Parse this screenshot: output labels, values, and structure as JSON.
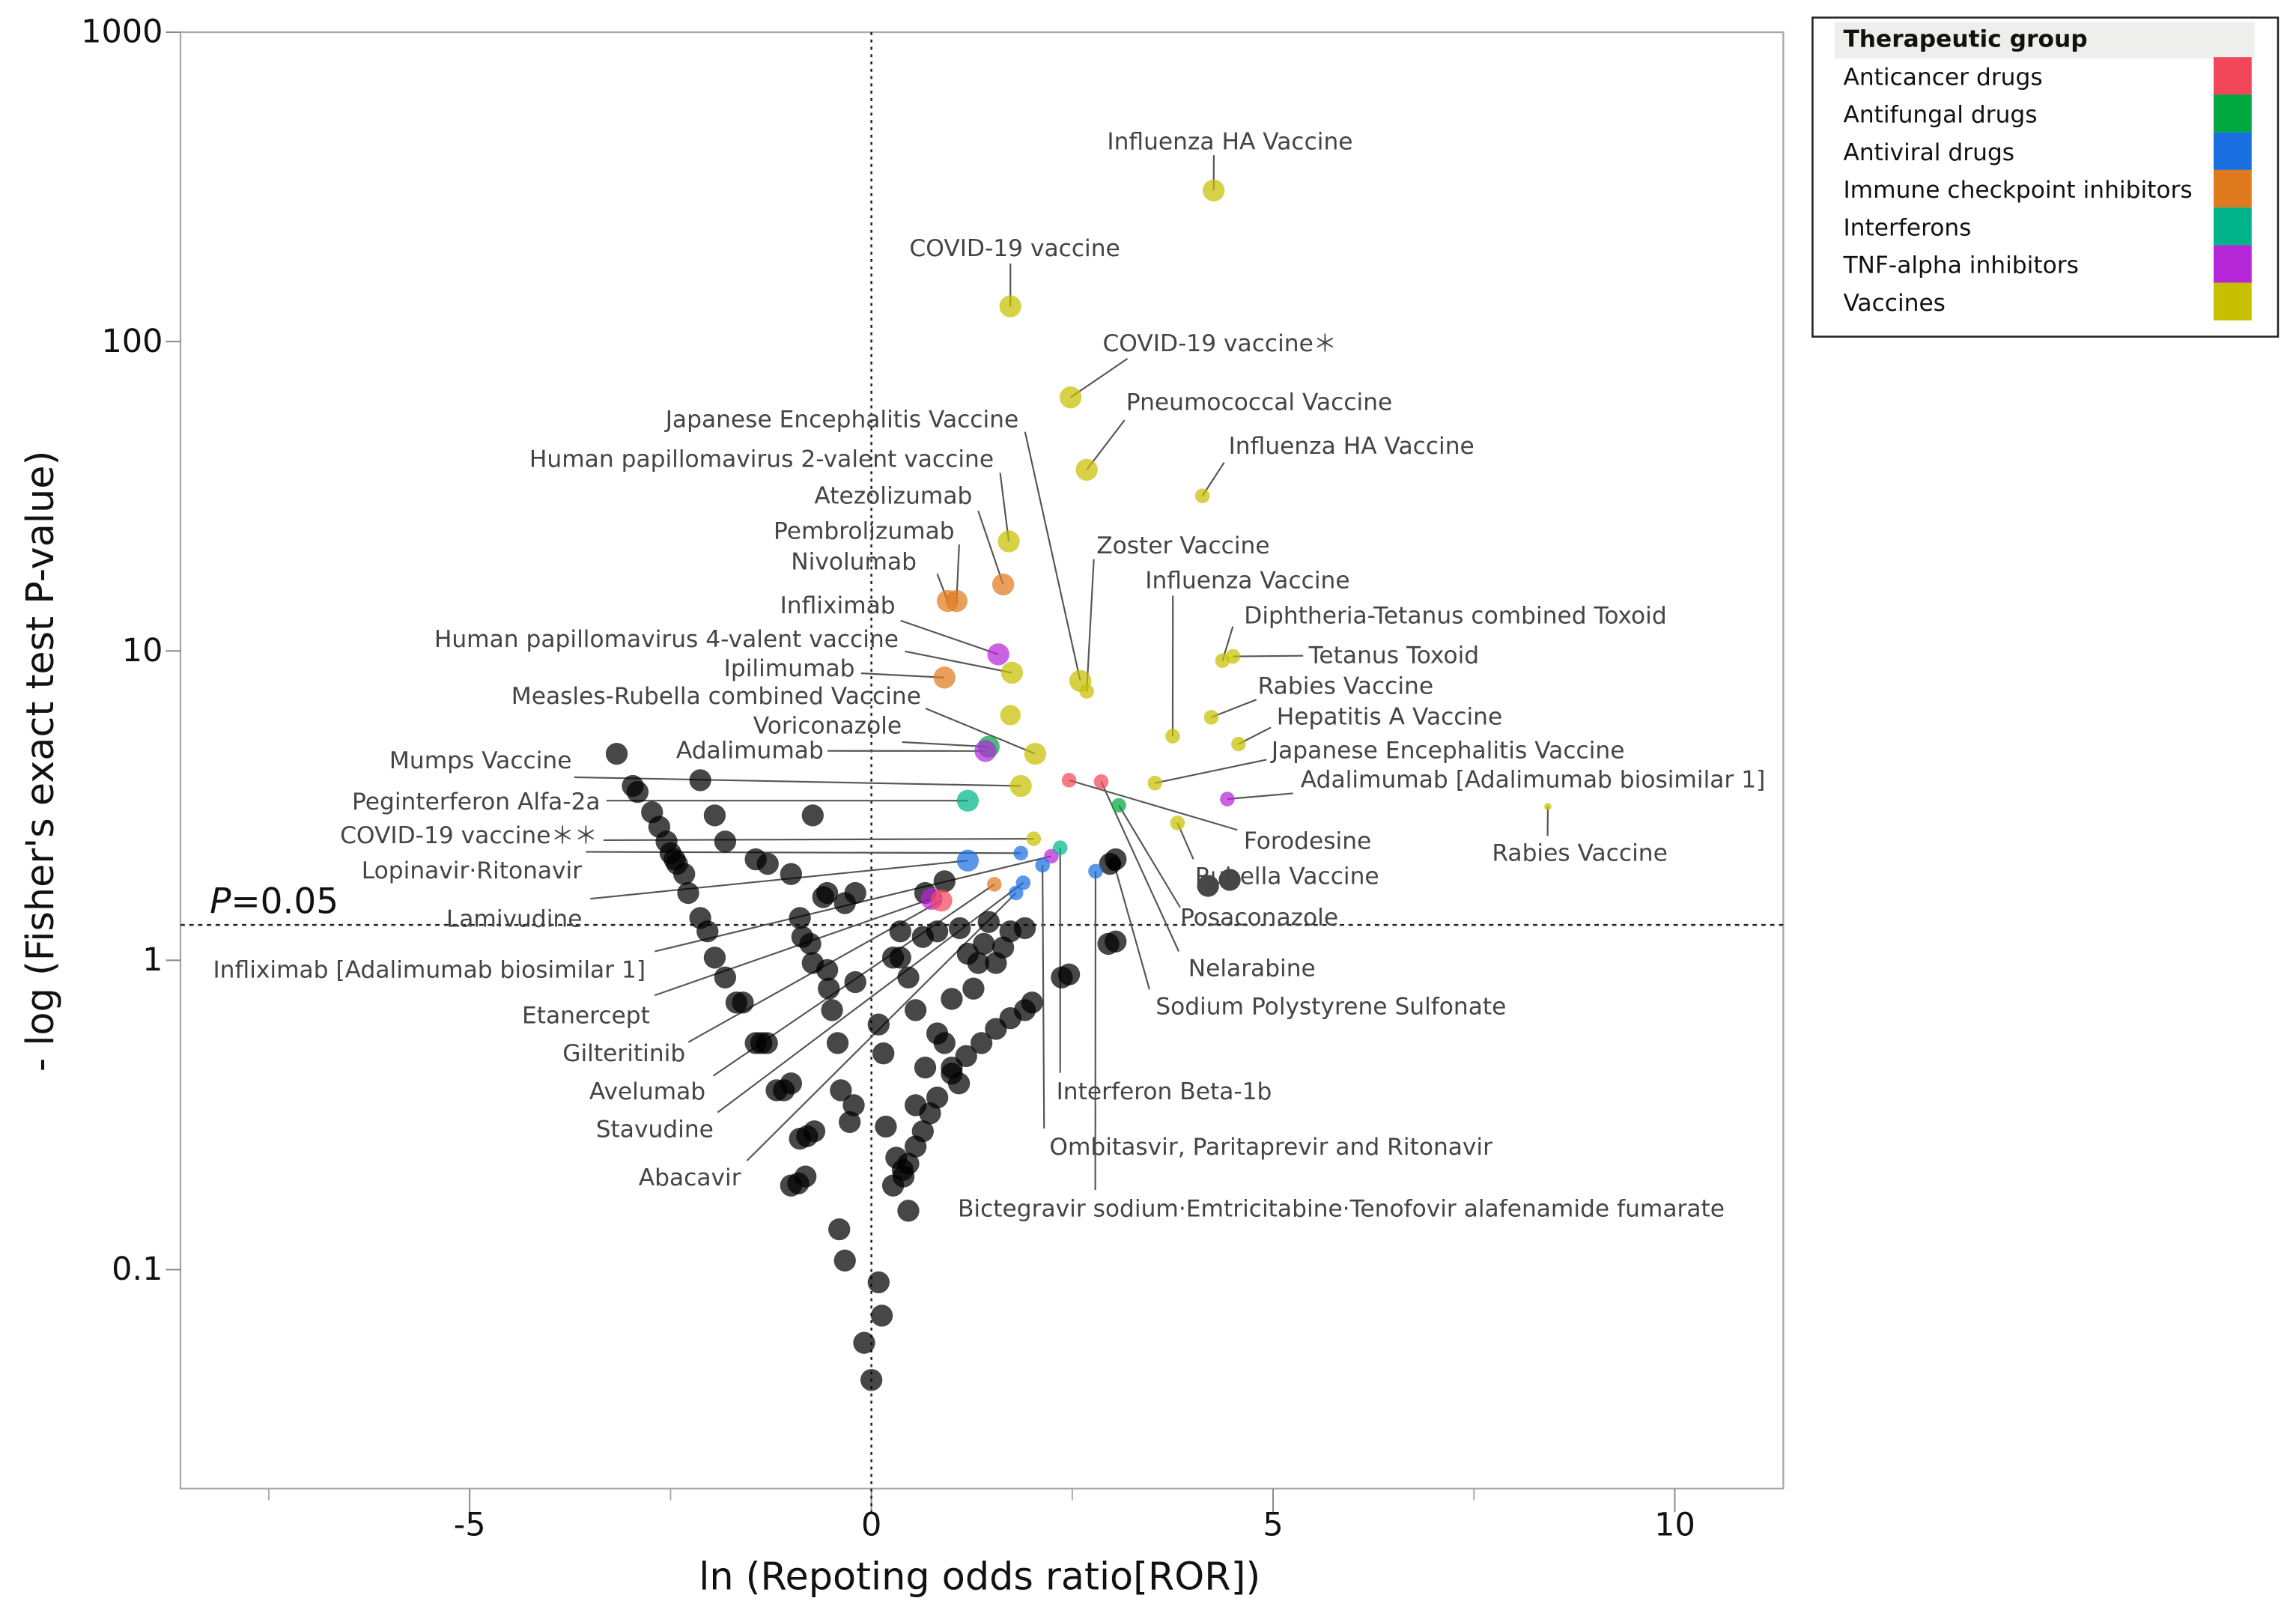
{
  "chart_data": {
    "type": "scatter",
    "title": "",
    "xlabel": "ln (Repoting odds ratio[ROR])",
    "ylabel": "- log (Fisher's exact test P-value)",
    "xlim": [
      -8.6,
      11.35
    ],
    "ylim": [
      0.0196,
      1000
    ],
    "yscale": "log",
    "x_ticks": [
      -5,
      0,
      5,
      10
    ],
    "x_tick_labels": [
      "-5",
      "0",
      "5",
      "10"
    ],
    "x_minor_ticks": [
      -7.5,
      -2.5,
      2.5,
      7.5
    ],
    "y_ticks": [
      1000,
      100,
      10,
      1,
      0.1
    ],
    "y_tick_labels": [
      "1000",
      "100",
      "10",
      "1",
      "0.1"
    ],
    "threshold": {
      "y": 1.301,
      "label_italic": "P",
      "label_rest": "=0.05"
    },
    "reference_x": 0,
    "legend": {
      "title": "Therapeutic group",
      "placement": "top-right",
      "groups": [
        {
          "name": "Anticancer drugs",
          "color": "#f2475a"
        },
        {
          "name": "Antifungal drugs",
          "color": "#00a840"
        },
        {
          "name": "Antiviral drugs",
          "color": "#1a6fe0"
        },
        {
          "name": "Immune checkpoint inhibitors",
          "color": "#e07a1e"
        },
        {
          "name": "Interferons",
          "color": "#00b48a"
        },
        {
          "name": "TNF-alpha inhibitors",
          "color": "#b526d9"
        },
        {
          "name": "Vaccines",
          "color": "#c8bf00"
        }
      ]
    },
    "points": [
      {
        "label": "Influenza HA Vaccine",
        "group": "Vaccines",
        "x": 4.26,
        "y": 308
      },
      {
        "label": "COVID-19 vaccine",
        "group": "Vaccines",
        "x": 1.73,
        "y": 130
      },
      {
        "label": "COVID-19 vaccine＊",
        "group": "Vaccines",
        "x": 2.48,
        "y": 66
      },
      {
        "label": "Pneumococcal Vaccine",
        "group": "Vaccines",
        "x": 2.68,
        "y": 38.5
      },
      {
        "label": "Influenza HA Vaccine",
        "group": "Vaccines",
        "x": 4.12,
        "y": 31.7,
        "small": true
      },
      {
        "label": "Japanese Encephalitis Vaccine",
        "group": "Vaccines",
        "x": 2.6,
        "y": 8.0
      },
      {
        "label": "Human papillomavirus 2-valent vaccine",
        "group": "Vaccines",
        "x": 1.71,
        "y": 22.6
      },
      {
        "label": "Atezolizumab",
        "group": "Immune checkpoint inhibitors",
        "x": 1.64,
        "y": 16.4
      },
      {
        "label": "Pembrolizumab",
        "group": "Immune checkpoint inhibitors",
        "x": 1.06,
        "y": 14.5
      },
      {
        "label": "Nivolumab",
        "group": "Immune checkpoint inhibitors",
        "x": 0.95,
        "y": 14.5
      },
      {
        "label": "Infliximab",
        "group": "TNF-alpha inhibitors",
        "x": 1.58,
        "y": 9.75
      },
      {
        "label": "Human papillomavirus 4-valent vaccine",
        "group": "Vaccines",
        "x": 1.75,
        "y": 8.5
      },
      {
        "label": "Ipilimumab",
        "group": "Immune checkpoint inhibitors",
        "x": 0.91,
        "y": 8.2
      },
      {
        "label": "Measles-Rubella combined Vaccine",
        "group": "Vaccines",
        "x": 2.04,
        "y": 4.65
      },
      {
        "label": "Voriconazole",
        "group": "Antifungal drugs",
        "x": 1.46,
        "y": 4.9
      },
      {
        "label": "Adalimumab",
        "group": "TNF-alpha inhibitors",
        "x": 1.42,
        "y": 4.75
      },
      {
        "label": "Mumps Vaccine",
        "group": "Vaccines",
        "x": 1.86,
        "y": 3.66
      },
      {
        "label": "Peginterferon Alfa-2a",
        "group": "Interferons",
        "x": 1.2,
        "y": 3.28
      },
      {
        "label": "COVID-19 vaccine＊＊",
        "group": "Vaccines",
        "x": 2.02,
        "y": 2.47,
        "small": true
      },
      {
        "label": "Lopinavir·Ritonavir",
        "group": "Antiviral drugs",
        "x": 1.86,
        "y": 2.22,
        "small": true
      },
      {
        "label": "Lamivudine",
        "group": "Antiviral drugs",
        "x": 1.2,
        "y": 2.1
      },
      {
        "label": "Infliximab [Adalimumab biosimilar 1]",
        "group": "TNF-alpha inhibitors",
        "x": 2.24,
        "y": 2.17,
        "small": true
      },
      {
        "label": "Etanercept",
        "group": "TNF-alpha inhibitors",
        "x": 0.75,
        "y": 1.58
      },
      {
        "label": "Gilteritinib",
        "group": "Anticancer drugs",
        "x": 0.87,
        "y": 1.56
      },
      {
        "label": "Avelumab",
        "group": "Immune checkpoint inhibitors",
        "x": 1.53,
        "y": 1.76,
        "small": true
      },
      {
        "label": "Stavudine",
        "group": "Antiviral drugs",
        "x": 1.89,
        "y": 1.78,
        "small": true
      },
      {
        "label": "Abacavir",
        "group": "Antiviral drugs",
        "x": 1.8,
        "y": 1.65,
        "small": true
      },
      {
        "label": "Interferon Beta-1b",
        "group": "Interferons",
        "x": 2.35,
        "y": 2.31,
        "small": true
      },
      {
        "label": "Ombitasvir, Paritaprevir and Ritonavir",
        "group": "Antiviral drugs",
        "x": 2.13,
        "y": 2.03,
        "small": true
      },
      {
        "label": "Bictegravir sodium·Emtricitabine·Tenofovir alafenamide fumarate",
        "group": "Antiviral drugs",
        "x": 2.79,
        "y": 1.94,
        "small": true
      },
      {
        "label": "Sodium Polystyrene Sulfonate",
        "group": "Other",
        "x": 3.02,
        "y": 2.05,
        "small": true
      },
      {
        "label": "Nelarabine",
        "group": "Anticancer drugs",
        "x": 2.86,
        "y": 3.78,
        "small": true
      },
      {
        "label": "Posaconazole",
        "group": "Antifungal drugs",
        "x": 3.08,
        "y": 3.17,
        "small": true
      },
      {
        "label": "Rubella Vaccine",
        "group": "Vaccines",
        "x": 3.81,
        "y": 2.78,
        "small": true
      },
      {
        "label": "Forodesine",
        "group": "Anticancer drugs",
        "x": 2.46,
        "y": 3.82,
        "small": true
      },
      {
        "label": "Adalimumab [Adalimumab biosimilar 1]",
        "group": "TNF-alpha inhibitors",
        "x": 4.43,
        "y": 3.32,
        "small": true
      },
      {
        "label": "Japanese Encephalitis Vaccine",
        "group": "Vaccines",
        "x": 3.53,
        "y": 3.74,
        "small": true
      },
      {
        "label": "Hepatitis A Vaccine",
        "group": "Vaccines",
        "x": 4.57,
        "y": 5.0,
        "small": true
      },
      {
        "label": "Rabies Vaccine",
        "group": "Vaccines",
        "x": 4.23,
        "y": 6.1,
        "small": true
      },
      {
        "label": "Tetanus Toxoid",
        "group": "Vaccines",
        "x": 4.5,
        "y": 9.6,
        "small": true
      },
      {
        "label": "Diphtheria-Tetanus combined Toxoid",
        "group": "Vaccines",
        "x": 4.37,
        "y": 9.3,
        "small": true
      },
      {
        "label": "Influenza Vaccine",
        "group": "Vaccines",
        "x": 3.75,
        "y": 5.3,
        "small": true
      },
      {
        "label": "Zoster Vaccine",
        "group": "Vaccines",
        "x": 2.68,
        "y": 7.4,
        "small": true
      },
      {
        "label": "Rabies Vaccine",
        "group": "Vaccines",
        "x": 8.42,
        "y": 3.14,
        "tiny": true
      }
    ],
    "unlabeled_colored_points": [
      {
        "group": "Vaccines",
        "x": 1.73,
        "y": 6.2
      }
    ],
    "other_points": [
      [
        -3.17,
        4.65
      ],
      [
        -2.97,
        3.66
      ],
      [
        -2.91,
        3.5
      ],
      [
        -2.73,
        3.01
      ],
      [
        -2.64,
        2.7
      ],
      [
        -2.55,
        2.42
      ],
      [
        -2.5,
        2.22
      ],
      [
        -2.45,
        2.12
      ],
      [
        -2.42,
        2.05
      ],
      [
        -2.33,
        1.9
      ],
      [
        -2.28,
        1.65
      ],
      [
        -2.13,
        1.37
      ],
      [
        -2.04,
        1.24
      ],
      [
        -1.95,
        1.02
      ],
      [
        -1.82,
        0.88
      ],
      [
        -1.68,
        0.73
      ],
      [
        -1.6,
        0.73
      ],
      [
        -1.44,
        0.54
      ],
      [
        -1.37,
        0.54
      ],
      [
        -1.3,
        0.54
      ],
      [
        -1.18,
        0.38
      ],
      [
        -1.09,
        0.38
      ],
      [
        -1.0,
        0.4
      ],
      [
        -0.89,
        0.265
      ],
      [
        -0.8,
        0.27
      ],
      [
        -0.71,
        0.28
      ],
      [
        -1.0,
        0.187
      ],
      [
        -0.91,
        0.19
      ],
      [
        -0.82,
        0.2
      ],
      [
        -0.4,
        0.135
      ],
      [
        -0.33,
        0.107
      ],
      [
        0.0,
        0.044
      ],
      [
        -0.09,
        0.058
      ],
      [
        0.09,
        0.091
      ],
      [
        0.13,
        0.071
      ],
      [
        -0.27,
        0.3
      ],
      [
        -0.22,
        0.34
      ],
      [
        -0.38,
        0.38
      ],
      [
        -0.42,
        0.54
      ],
      [
        -0.49,
        0.69
      ],
      [
        -0.53,
        0.81
      ],
      [
        -0.73,
        0.98
      ],
      [
        -0.76,
        1.13
      ],
      [
        -0.86,
        1.19
      ],
      [
        -0.89,
        1.37
      ],
      [
        -1.0,
        1.9
      ],
      [
        -1.29,
        2.05
      ],
      [
        -1.44,
        2.12
      ],
      [
        -1.82,
        2.42
      ],
      [
        -1.95,
        2.94
      ],
      [
        -2.13,
        3.82
      ],
      [
        -0.73,
        2.94
      ],
      [
        -0.55,
        1.65
      ],
      [
        -0.33,
        1.53
      ],
      [
        -0.6,
        1.6
      ],
      [
        0.09,
        0.62
      ],
      [
        0.15,
        0.5
      ],
      [
        0.18,
        0.29
      ],
      [
        0.31,
        0.23
      ],
      [
        0.39,
        0.21
      ],
      [
        0.46,
        0.155
      ],
      [
        0.67,
        0.45
      ],
      [
        0.55,
        0.34
      ],
      [
        0.36,
        1.24
      ],
      [
        0.36,
        1.02
      ],
      [
        0.46,
        0.88
      ],
      [
        0.55,
        0.69
      ],
      [
        0.82,
        0.58
      ],
      [
        0.91,
        0.54
      ],
      [
        1.0,
        0.45
      ],
      [
        1.09,
        0.4
      ],
      [
        1.27,
        0.81
      ],
      [
        1.33,
        0.98
      ],
      [
        1.4,
        1.13
      ],
      [
        1.55,
        0.98
      ],
      [
        1.64,
        1.1
      ],
      [
        1.73,
        1.24
      ],
      [
        1.91,
        1.27
      ],
      [
        2.0,
        0.73
      ],
      [
        1.91,
        0.69
      ],
      [
        1.73,
        0.65
      ],
      [
        1.55,
        0.6
      ],
      [
        1.37,
        0.54
      ],
      [
        1.18,
        0.49
      ],
      [
        1.0,
        0.43
      ],
      [
        0.82,
        0.36
      ],
      [
        0.73,
        0.32
      ],
      [
        0.64,
        0.28
      ],
      [
        0.55,
        0.25
      ],
      [
        0.46,
        0.22
      ],
      [
        0.4,
        0.2
      ],
      [
        0.27,
        0.187
      ],
      [
        0.64,
        1.19
      ],
      [
        0.67,
        1.65
      ],
      [
        0.91,
        1.8
      ],
      [
        2.37,
        0.88
      ],
      [
        2.46,
        0.9
      ],
      [
        2.95,
        1.13
      ],
      [
        3.04,
        1.15
      ],
      [
        2.97,
        2.05
      ],
      [
        3.04,
        2.12
      ],
      [
        4.19,
        1.74
      ],
      [
        4.46,
        1.82
      ],
      [
        -0.2,
        1.65
      ],
      [
        -0.55,
        0.93
      ],
      [
        -0.2,
        0.85
      ],
      [
        0.27,
        1.02
      ],
      [
        0.82,
        1.24
      ],
      [
        1.1,
        1.27
      ],
      [
        1.46,
        1.33
      ],
      [
        1.2,
        1.05
      ],
      [
        1.0,
        0.75
      ]
    ]
  }
}
